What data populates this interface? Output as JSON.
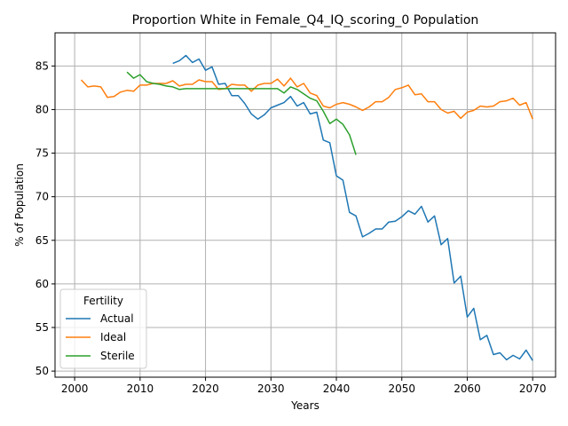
{
  "chart_data": {
    "type": "line",
    "title": "Proportion White in Female_Q4_IQ_scoring_0 Population",
    "xlabel": "Years",
    "ylabel": "% of Population",
    "xlim": [
      1997,
      2073.5
    ],
    "ylim": [
      49.3,
      88.8
    ],
    "xticks": [
      2000,
      2010,
      2020,
      2030,
      2040,
      2050,
      2060,
      2070
    ],
    "yticks": [
      50,
      55,
      60,
      65,
      70,
      75,
      80,
      85
    ],
    "grid": true,
    "legend": {
      "title": "Fertility",
      "placement": "lower-left"
    },
    "series": [
      {
        "name": "Actual",
        "color": "#1f77b4",
        "x": [
          2015,
          2016,
          2017,
          2018,
          2019,
          2020,
          2021,
          2022,
          2023,
          2024,
          2025,
          2026,
          2027,
          2028,
          2029,
          2030,
          2031,
          2032,
          2033,
          2034,
          2035,
          2036,
          2037,
          2038,
          2039,
          2040,
          2041,
          2042,
          2043,
          2044,
          2045,
          2046,
          2047,
          2048,
          2049,
          2050,
          2051,
          2052,
          2053,
          2054,
          2055,
          2056,
          2057,
          2058,
          2059,
          2060,
          2061,
          2062,
          2063,
          2064,
          2065,
          2066,
          2067,
          2068,
          2069,
          2070
        ],
        "y": [
          85.3,
          85.6,
          86.2,
          85.4,
          85.8,
          84.5,
          84.9,
          82.9,
          83.0,
          81.6,
          81.6,
          80.7,
          79.5,
          78.9,
          79.4,
          80.2,
          80.5,
          80.8,
          81.5,
          80.4,
          80.8,
          79.5,
          79.7,
          76.5,
          76.2,
          72.4,
          71.9,
          68.2,
          67.8,
          65.4,
          65.8,
          66.3,
          66.3,
          67.1,
          67.2,
          67.7,
          68.4,
          68.0,
          68.9,
          67.1,
          67.8,
          64.5,
          65.2,
          60.1,
          60.9,
          56.2,
          57.2,
          53.6,
          54.1,
          51.9,
          52.1,
          51.3,
          51.8,
          51.4,
          52.4,
          51.2
        ]
      },
      {
        "name": "Ideal",
        "color": "#ff7f0e",
        "x": [
          2001,
          2002,
          2003,
          2004,
          2005,
          2006,
          2007,
          2008,
          2009,
          2010,
          2011,
          2012,
          2013,
          2014,
          2015,
          2016,
          2017,
          2018,
          2019,
          2020,
          2021,
          2022,
          2023,
          2024,
          2025,
          2026,
          2027,
          2028,
          2029,
          2030,
          2031,
          2032,
          2033,
          2034,
          2035,
          2036,
          2037,
          2038,
          2039,
          2040,
          2041,
          2042,
          2043,
          2044,
          2045,
          2046,
          2047,
          2048,
          2049,
          2050,
          2051,
          2052,
          2053,
          2054,
          2055,
          2056,
          2057,
          2058,
          2059,
          2060,
          2061,
          2062,
          2063,
          2064,
          2065,
          2066,
          2067,
          2068,
          2069,
          2070
        ],
        "y": [
          83.4,
          82.6,
          82.7,
          82.6,
          81.4,
          81.5,
          82.0,
          82.2,
          82.1,
          82.8,
          82.8,
          83.0,
          83.0,
          83.0,
          83.3,
          82.7,
          82.9,
          82.9,
          83.4,
          83.2,
          83.2,
          82.3,
          82.4,
          82.9,
          82.8,
          82.8,
          82.1,
          82.8,
          83.0,
          83.0,
          83.5,
          82.7,
          83.6,
          82.6,
          83.0,
          81.9,
          81.6,
          80.4,
          80.2,
          80.6,
          80.8,
          80.6,
          80.3,
          79.9,
          80.3,
          80.9,
          80.9,
          81.4,
          82.3,
          82.5,
          82.8,
          81.7,
          81.8,
          80.9,
          80.9,
          80.0,
          79.6,
          79.8,
          79.0,
          79.7,
          79.9,
          80.4,
          80.3,
          80.4,
          80.9,
          81.0,
          81.3,
          80.5,
          80.8,
          78.9
        ]
      },
      {
        "name": "Sterile",
        "color": "#2ca02c",
        "x": [
          2008,
          2009,
          2010,
          2011,
          2012,
          2013,
          2014,
          2015,
          2016,
          2017,
          2018,
          2019,
          2020,
          2021,
          2022,
          2023,
          2024,
          2025,
          2026,
          2027,
          2028,
          2029,
          2030,
          2031,
          2032,
          2033,
          2034,
          2035,
          2036,
          2037,
          2038,
          2039,
          2040,
          2041,
          2042,
          2043
        ],
        "y": [
          84.3,
          83.6,
          84.0,
          83.2,
          83.0,
          82.9,
          82.7,
          82.6,
          82.3,
          82.4,
          82.4,
          82.4,
          82.4,
          82.4,
          82.4,
          82.4,
          82.4,
          82.4,
          82.4,
          82.4,
          82.4,
          82.4,
          82.4,
          82.4,
          81.9,
          82.6,
          82.3,
          81.8,
          81.3,
          81.0,
          79.8,
          78.4,
          78.9,
          78.3,
          77.1,
          74.8
        ]
      }
    ]
  }
}
